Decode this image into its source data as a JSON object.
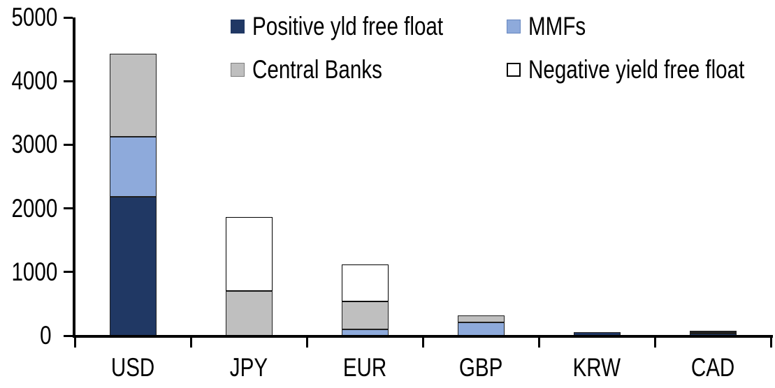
{
  "chart_data": {
    "type": "bar",
    "stacked": true,
    "title": "",
    "categories": [
      "USD",
      "JPY",
      "EUR",
      "GBP",
      "KRW",
      "CAD"
    ],
    "series": [
      {
        "name": "Positive yld free float",
        "color": "#203864",
        "values": [
          2180,
          0,
          0,
          0,
          50,
          30
        ]
      },
      {
        "name": "MMFs",
        "color": "#8EAADB",
        "values": [
          950,
          0,
          100,
          210,
          0,
          20
        ]
      },
      {
        "name": "Central Banks",
        "color": "#BFBFBF",
        "values": [
          1300,
          700,
          440,
          110,
          0,
          25
        ]
      },
      {
        "name": "Negative yield free float",
        "color": "#FFFFFF",
        "values": [
          0,
          1160,
          580,
          0,
          0,
          0
        ]
      }
    ],
    "totals": [
      4430,
      1860,
      1120,
      320,
      50,
      75
    ],
    "ylim": [
      0,
      5000
    ],
    "y_tick_step": 1000,
    "y_tick_labels": [
      "0",
      "1000",
      "2000",
      "3000",
      "4000",
      "5000"
    ],
    "grid": false,
    "legend_position": "top-two-column",
    "axis_color": "#000000",
    "background_color": "#FFFFFF"
  }
}
